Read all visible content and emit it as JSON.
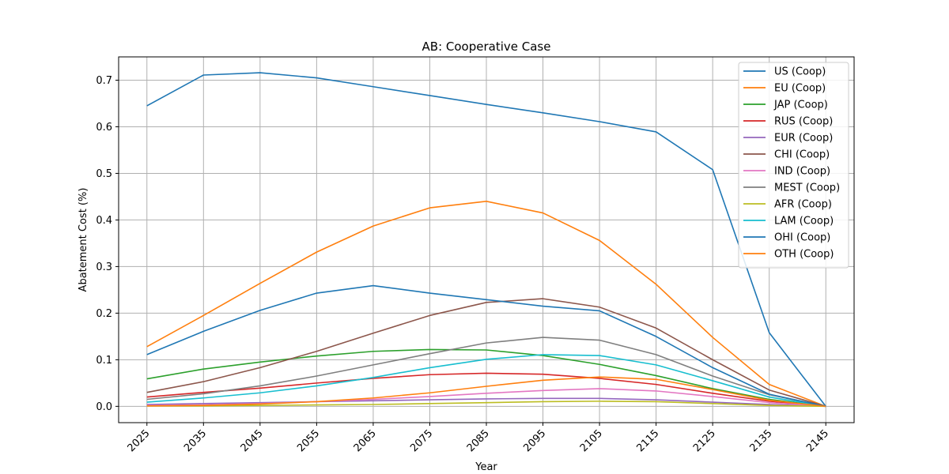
{
  "chart_data": {
    "type": "line",
    "title": "AB: Cooperative Case",
    "xlabel": "Year",
    "ylabel": "Abatement Cost (%)",
    "x": [
      2025,
      2035,
      2045,
      2055,
      2065,
      2075,
      2085,
      2095,
      2105,
      2115,
      2125,
      2135,
      2145
    ],
    "x_tick_labels": [
      "2025",
      "2035",
      "2045",
      "2055",
      "2065",
      "2075",
      "2085",
      "2095",
      "2105",
      "2115",
      "2125",
      "2135",
      "2145"
    ],
    "ylim": [
      -0.035,
      0.75
    ],
    "y_ticks": [
      0.0,
      0.1,
      0.2,
      0.3,
      0.4,
      0.5,
      0.6,
      0.7
    ],
    "y_tick_labels": [
      "0.0",
      "0.1",
      "0.2",
      "0.3",
      "0.4",
      "0.5",
      "0.6",
      "0.7"
    ],
    "grid": true,
    "legend_position": "top-right",
    "series": [
      {
        "name": "US (Coop)",
        "color": "#1f77b4",
        "values": [
          0.645,
          0.711,
          0.716,
          0.705,
          0.686,
          0.667,
          0.648,
          0.63,
          0.611,
          0.589,
          0.508,
          0.158,
          0.0
        ]
      },
      {
        "name": "EU (Coop)",
        "color": "#ff7f0e",
        "values": [
          0.128,
          0.195,
          0.264,
          0.331,
          0.387,
          0.426,
          0.44,
          0.415,
          0.356,
          0.262,
          0.148,
          0.047,
          0.0
        ]
      },
      {
        "name": "JAP (Coop)",
        "color": "#2ca02c",
        "values": [
          0.059,
          0.08,
          0.095,
          0.108,
          0.118,
          0.122,
          0.121,
          0.109,
          0.09,
          0.066,
          0.038,
          0.015,
          0.0
        ]
      },
      {
        "name": "RUS (Coop)",
        "color": "#d62728",
        "values": [
          0.02,
          0.03,
          0.039,
          0.05,
          0.06,
          0.068,
          0.071,
          0.069,
          0.06,
          0.047,
          0.028,
          0.011,
          0.0
        ]
      },
      {
        "name": "EUR (Coop)",
        "color": "#9467bd",
        "values": [
          0.004,
          0.006,
          0.008,
          0.01,
          0.012,
          0.014,
          0.016,
          0.017,
          0.017,
          0.014,
          0.009,
          0.004,
          0.0
        ]
      },
      {
        "name": "CHI (Coop)",
        "color": "#8c564b",
        "values": [
          0.03,
          0.053,
          0.083,
          0.118,
          0.157,
          0.195,
          0.223,
          0.231,
          0.213,
          0.168,
          0.1,
          0.035,
          0.0
        ]
      },
      {
        "name": "IND (Coop)",
        "color": "#e377c2",
        "values": [
          0.002,
          0.003,
          0.006,
          0.01,
          0.015,
          0.021,
          0.028,
          0.034,
          0.038,
          0.033,
          0.021,
          0.008,
          0.0
        ]
      },
      {
        "name": "MEST (Coop)",
        "color": "#7f7f7f",
        "values": [
          0.015,
          0.027,
          0.044,
          0.065,
          0.089,
          0.113,
          0.136,
          0.148,
          0.142,
          0.111,
          0.065,
          0.025,
          0.0
        ]
      },
      {
        "name": "AFR (Coop)",
        "color": "#bcbd22",
        "values": [
          0.001,
          0.001,
          0.002,
          0.003,
          0.004,
          0.006,
          0.008,
          0.01,
          0.011,
          0.01,
          0.006,
          0.002,
          0.0
        ]
      },
      {
        "name": "LAM (Coop)",
        "color": "#17becf",
        "values": [
          0.009,
          0.018,
          0.029,
          0.044,
          0.062,
          0.083,
          0.101,
          0.111,
          0.109,
          0.089,
          0.055,
          0.02,
          0.0
        ]
      },
      {
        "name": "OHI (Coop)",
        "color": "#1f77b4",
        "values": [
          0.111,
          0.161,
          0.206,
          0.243,
          0.259,
          0.243,
          0.229,
          0.215,
          0.205,
          0.15,
          0.083,
          0.026,
          0.0
        ]
      },
      {
        "name": "OTH (Coop)",
        "color": "#ff7f0e",
        "values": [
          0.001,
          0.002,
          0.005,
          0.01,
          0.018,
          0.029,
          0.043,
          0.056,
          0.063,
          0.058,
          0.036,
          0.013,
          0.0
        ]
      }
    ]
  }
}
